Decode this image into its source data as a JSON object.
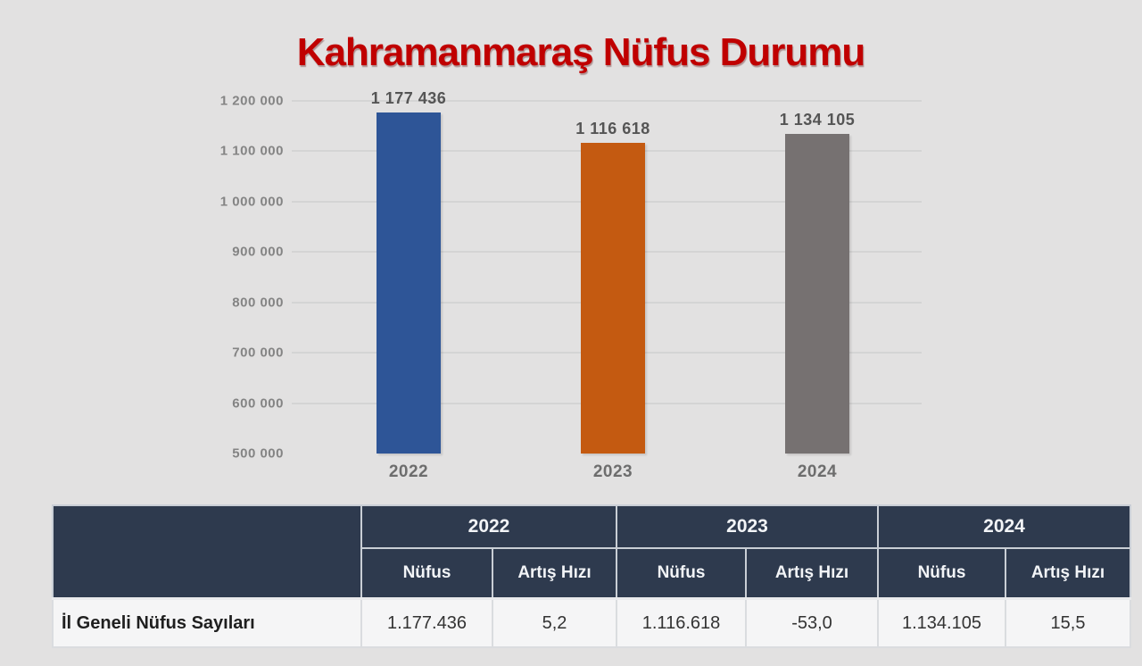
{
  "page": {
    "background": "#e2e1e1"
  },
  "chart_data": {
    "type": "bar",
    "title": "Kahramanmaraş Nüfus Durumu",
    "title_color": "#c00000",
    "categories": [
      "2022",
      "2023",
      "2024"
    ],
    "values": [
      1177436,
      1116618,
      1134105
    ],
    "data_labels": [
      "1 177 436",
      "1 116 618",
      "1 134 105"
    ],
    "bar_colors": [
      "#2e5597",
      "#c45a11",
      "#767171"
    ],
    "xlabel": "",
    "ylabel": "",
    "ylim": [
      500000,
      1200000
    ],
    "ytick_step": 100000,
    "ytick_labels": [
      "1 200 000",
      "1 100 000",
      "1 000 000",
      "900 000",
      "800 000",
      "700 000",
      "600 000",
      "500 000"
    ],
    "grid": true,
    "legend_position": "none"
  },
  "table": {
    "header_bg": "#2e3a4e",
    "year_headers": [
      "2022",
      "2023",
      "2024"
    ],
    "sub_headers": {
      "nufus": "Nüfus",
      "artis_hizi": "Artış Hızı"
    },
    "row": {
      "label": "İl Geneli Nüfus Sayıları",
      "values": {
        "y2022": {
          "nufus": "1.177.436",
          "artis_hizi": "5,2"
        },
        "y2023": {
          "nufus": "1.116.618",
          "artis_hizi": "-53,0"
        },
        "y2024": {
          "nufus": "1.134.105",
          "artis_hizi": "15,5"
        }
      }
    }
  }
}
